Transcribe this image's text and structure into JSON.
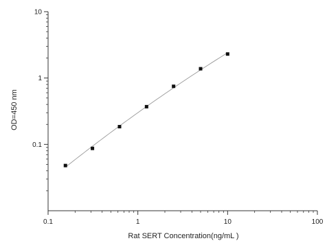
{
  "chart_data": {
    "type": "scatter",
    "title": "",
    "xlabel": "Rat SERT Concentration(ng/mL )",
    "ylabel": "OD=450 nm",
    "x_scale": "log",
    "y_scale": "log",
    "xlim": [
      0.1,
      100
    ],
    "ylim": [
      0.01,
      10
    ],
    "x_ticks": [
      {
        "value": 0.1,
        "label": "0.1"
      },
      {
        "value": 1,
        "label": "1"
      },
      {
        "value": 10,
        "label": "10"
      },
      {
        "value": 100,
        "label": "100"
      }
    ],
    "y_ticks": [
      {
        "value": 0.1,
        "label": "0.1"
      },
      {
        "value": 1,
        "label": "1"
      },
      {
        "value": 10,
        "label": "10"
      }
    ],
    "grid": false,
    "fit_line": true,
    "colors": {
      "points": "#111111",
      "curve": "#9a9a9a",
      "axis": "#333333"
    },
    "series": [
      {
        "x": [
          0.156,
          0.312,
          0.625,
          1.25,
          2.5,
          5,
          10
        ],
        "y": [
          0.048,
          0.087,
          0.185,
          0.37,
          0.75,
          1.38,
          2.3
        ]
      }
    ]
  }
}
